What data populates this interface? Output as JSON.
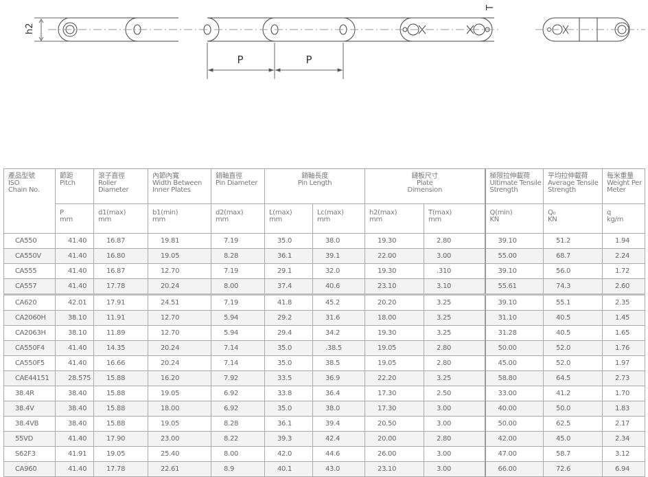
{
  "drawing": {
    "height_label": "h2",
    "thickness_label": "T",
    "pitch_labels": [
      "P",
      "P"
    ]
  },
  "table": {
    "group_headers": [
      {
        "zh": "產品型號",
        "en": "ISO",
        "en2": "Chain No."
      },
      {
        "zh": "節距",
        "en": "Pitch"
      },
      {
        "zh": "滾子直徑",
        "en": "Roller",
        "en2": "Diameter"
      },
      {
        "zh": "內節內寬",
        "en": "Width Between",
        "en2": "Inner Plates"
      },
      {
        "zh": "銷軸直徑",
        "en": "Pin Diameter"
      },
      {
        "zh": "銷軸長度",
        "en": "Pin Length"
      },
      {
        "zh": "鏈板尺寸",
        "en": "Plate",
        "en2": "Dimension"
      },
      {
        "zh": "極限拉伸載荷",
        "en": "Ultimate Tensile",
        "en2": "Strength"
      },
      {
        "zh": "平均拉伸載荷",
        "en": "Average Tensile",
        "en2": "Strength"
      },
      {
        "zh": "每米重量",
        "en": "Weight Per",
        "en2": "Meter"
      }
    ],
    "sub_headers": [
      {
        "sym": "P",
        "unit": "mm"
      },
      {
        "sym": "d1(max)",
        "unit": "mm"
      },
      {
        "sym": "b1(min)",
        "unit": "mm"
      },
      {
        "sym": "d2(max)",
        "unit": "mm"
      },
      {
        "sym": "L(max)",
        "unit": "mm"
      },
      {
        "sym": "Lc(max)",
        "unit": "mm"
      },
      {
        "sym": "h2(max)",
        "unit": "mm"
      },
      {
        "sym": "T(max)",
        "unit": "mm"
      },
      {
        "sym": "Q(min)",
        "unit": "KN"
      },
      {
        "sym": "Q₀",
        "unit": "KN"
      },
      {
        "sym": "q",
        "unit": "kg/m"
      }
    ],
    "rows": [
      [
        "CA550",
        "41.40",
        "16.87",
        "19.81",
        "7.19",
        "35.0",
        "38.0",
        "19.30",
        "2.80",
        "39.10",
        "51.2",
        "1.94"
      ],
      [
        "CA550V",
        "41.40",
        "16.80",
        "19.05",
        "8.28",
        "36.1",
        "39.1",
        "22.00",
        "3.00",
        "55.00",
        "68.7",
        "2.24"
      ],
      [
        "CA555",
        "41.40",
        "16.87",
        "12.70",
        "7.19",
        "29.1",
        "32.0",
        "19.30",
        ".310",
        "39.10",
        "56.0",
        "1.72"
      ],
      [
        "CA557",
        "41.40",
        "17.78",
        "20.24",
        "8.00",
        "37.4",
        "40.6",
        "23.10",
        "3.10",
        "55.61",
        "74.3",
        "2.60"
      ],
      [
        "CA620",
        "42.01",
        "17.91",
        "24.51",
        "7.19",
        "41.8",
        "45.2",
        "20.20",
        "3.25",
        "39.10",
        "55.1",
        "2.35"
      ],
      [
        "CA2060H",
        "38.10",
        "11.91",
        "12.70",
        "5.94",
        "29.2",
        "31.6",
        "18.00",
        "3.25",
        "31.10",
        "40.5",
        "1.45"
      ],
      [
        "CA2063H",
        "38.10",
        "11.89",
        "12.70",
        "5.94",
        "29.4",
        "34.2",
        "19.30",
        "3.25",
        "31.28",
        "40.5",
        "1.65"
      ],
      [
        "CA550F4",
        "41.40",
        "14.35",
        "20.24",
        "7.14",
        "35.0",
        ".38.5",
        "19.05",
        "2.80",
        "50.00",
        "52.0",
        "1.76"
      ],
      [
        "CA550F5",
        "41.40",
        "16.66",
        "20.24",
        "7.14",
        "35.0",
        "38.5",
        "19.05",
        "2.80",
        "45.00",
        "52.0",
        "1.97"
      ],
      [
        "CAE44151",
        "28.575",
        "15.88",
        "16.20",
        "7.92",
        "33.5",
        "36.9",
        "22.20",
        "3.25",
        "58.80",
        "64.5",
        "2.73"
      ],
      [
        "38.4R",
        "38.40",
        "15.88",
        "19.05",
        "6.92",
        "33.8",
        "36.4",
        "17.30",
        "2.50",
        "33.00",
        "41.2",
        "1.70"
      ],
      [
        "38.4V",
        "38.40",
        "15.88",
        "18.00",
        "6.92",
        "35.0",
        "38.0",
        "17.30",
        "3.00",
        "40.00",
        "50.0",
        "1.83"
      ],
      [
        "38.4VB",
        "38.40",
        "15.88",
        "19.05",
        "8.28",
        "36.1",
        "39.4",
        "20.50",
        "3.00",
        "50.00",
        "62.5",
        "2.17"
      ],
      [
        "55VD",
        "41.40",
        "17.90",
        "23.00",
        "8.22",
        "39.3",
        "42.4",
        "20.00",
        "2.80",
        "42.00",
        "45.0",
        "2.34"
      ],
      [
        "S62F3",
        "41.91",
        "19.05",
        "25.40",
        "8.00",
        "42.0",
        "44.6",
        "26.00",
        "3.00",
        "47.00",
        "58.7",
        "3.12"
      ],
      [
        "CA960",
        "41.40",
        "17.78",
        "22.61",
        "8.9",
        "40.1",
        "43.0",
        "23.10",
        "3.00",
        "66.00",
        "72.6",
        "6.94"
      ]
    ]
  }
}
